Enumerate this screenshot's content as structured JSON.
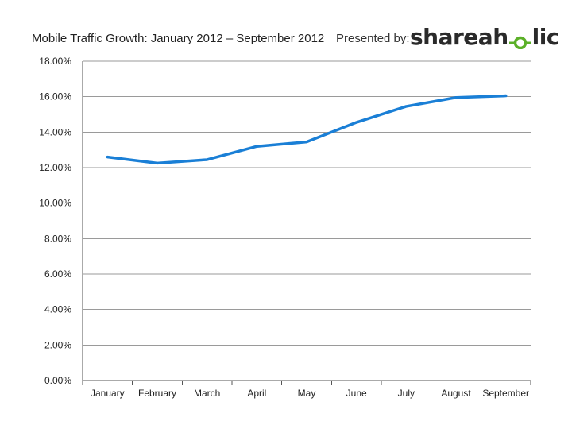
{
  "header": {
    "title": "Mobile Traffic Growth: January 2012 – September 2012",
    "presented_by": "Presented by:",
    "logo_text_left": "shareah",
    "logo_text_right": "lic",
    "logo_icon": "shareaholic-o-icon"
  },
  "colors": {
    "line": "#1a7fd6",
    "grid": "#9a9a9a",
    "axis": "#555555",
    "logo_green": "#5bb028"
  },
  "chart_data": {
    "type": "line",
    "title": "Mobile Traffic Growth: January 2012 – September 2012",
    "xlabel": "",
    "ylabel": "",
    "categories": [
      "January",
      "February",
      "March",
      "April",
      "May",
      "June",
      "July",
      "August",
      "September"
    ],
    "series": [
      {
        "values": [
          12.6,
          12.25,
          12.45,
          13.2,
          13.45,
          14.55,
          15.45,
          15.95,
          16.05
        ]
      }
    ],
    "ylim": [
      0,
      18
    ],
    "yticks": [
      "0.00%",
      "2.00%",
      "4.00%",
      "6.00%",
      "8.00%",
      "10.00%",
      "12.00%",
      "14.00%",
      "16.00%",
      "18.00%"
    ],
    "grid": true,
    "legend": "none"
  }
}
